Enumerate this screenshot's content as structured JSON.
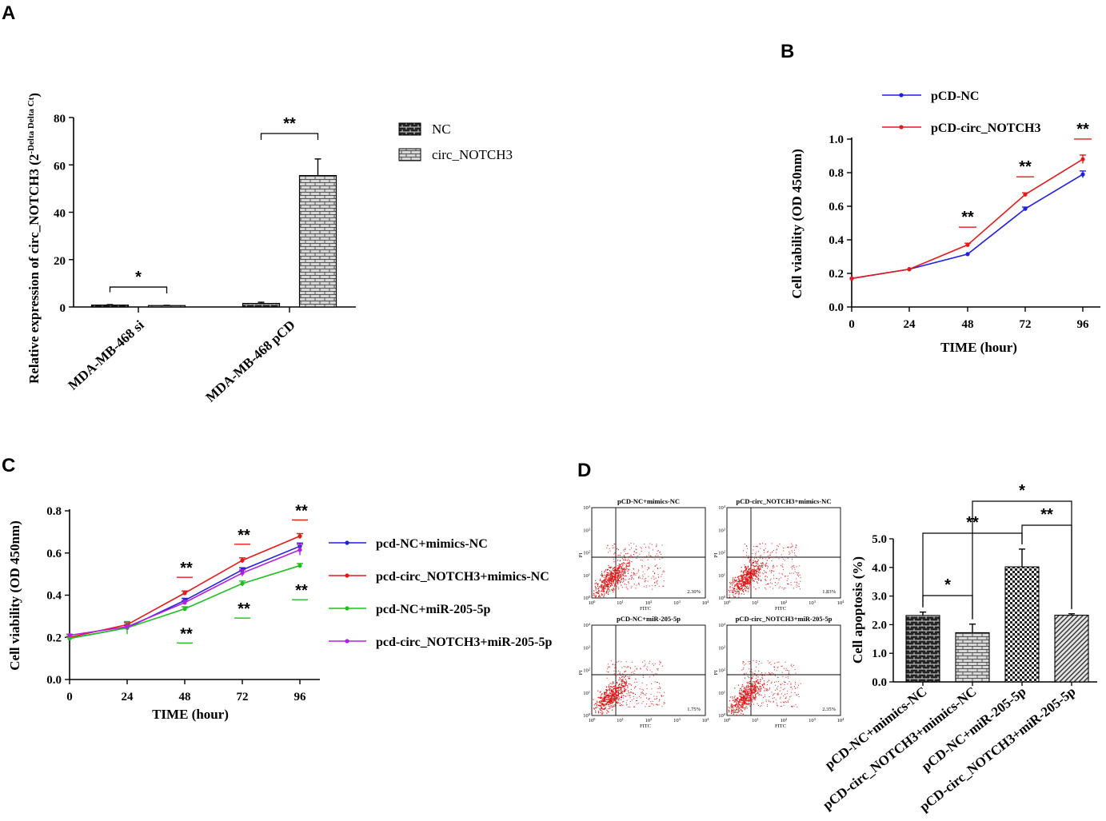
{
  "colors": {
    "blue": "#1f1fe0",
    "red": "#e41a1a",
    "green": "#1fbf1f",
    "magenta": "#b21fe0",
    "dot_red": "#e01818"
  },
  "chart_data": [
    {
      "id": "A",
      "panel_label": "A",
      "type": "bar",
      "ylabel": "Relative expression of circ_NOTCH3 (2",
      "ylabel_sup": "-Delta Delta Ct",
      "ylabel_close": ")",
      "ylim": [
        0,
        80
      ],
      "yticks": [
        0,
        20,
        40,
        60,
        80
      ],
      "categories": [
        "MDA-MB-468 si",
        "MDA-MB-468 pCD"
      ],
      "series": [
        {
          "name": "NC",
          "values": [
            0.8,
            1.5
          ],
          "errors": [
            0.2,
            0.5
          ]
        },
        {
          "name": "circ_NOTCH3",
          "values": [
            0.6,
            55.5
          ],
          "errors": [
            0.1,
            7.0
          ]
        }
      ],
      "significance": [
        {
          "category": "MDA-MB-468 si",
          "label": "*"
        },
        {
          "category": "MDA-MB-468 pCD",
          "label": "**"
        }
      ]
    },
    {
      "id": "B",
      "panel_label": "B",
      "type": "line",
      "xlabel": "TIME (hour)",
      "ylabel": "Cell viability (OD 450nm)",
      "x": [
        0,
        24,
        48,
        72,
        96
      ],
      "xticks": [
        0,
        24,
        48,
        72,
        96
      ],
      "ylim": [
        0,
        1.0
      ],
      "yticks": [
        "0.0",
        "0.2",
        "0.4",
        "0.6",
        "0.8",
        "1.0"
      ],
      "series": [
        {
          "name": "pCD-NC",
          "color": "#1f1fe0",
          "values": [
            0.17,
            0.225,
            0.315,
            0.585,
            0.79
          ],
          "errors": [
            0,
            0,
            0,
            0.01,
            0.02
          ]
        },
        {
          "name": "pCD-circ_NOTCH3",
          "color": "#e41a1a",
          "values": [
            0.17,
            0.225,
            0.37,
            0.67,
            0.88
          ],
          "errors": [
            0,
            0,
            0.01,
            0.01,
            0.025
          ]
        }
      ],
      "significance": [
        {
          "x": 48,
          "label": "**"
        },
        {
          "x": 72,
          "label": "**"
        },
        {
          "x": 96,
          "label": "**"
        }
      ]
    },
    {
      "id": "C",
      "panel_label": "C",
      "type": "line",
      "xlabel": "TIME (hour)",
      "ylabel": "Cell viability (OD 450nm)",
      "x": [
        0,
        24,
        48,
        72,
        96
      ],
      "xticks": [
        0,
        24,
        48,
        72,
        96
      ],
      "ylim": [
        0,
        0.8
      ],
      "yticks": [
        "0.0",
        "0.2",
        "0.4",
        "0.6",
        "0.8"
      ],
      "series": [
        {
          "name": "pcd-NC+mimics-NC",
          "color": "#1f1fe0",
          "values": [
            0.195,
            0.245,
            0.375,
            0.52,
            0.632
          ],
          "errors": [
            0.005,
            0.01,
            0.01,
            0.01,
            0.015
          ]
        },
        {
          "name": "pcd-circ_NOTCH3+mimics-NC",
          "color": "#e41a1a",
          "values": [
            0.2,
            0.26,
            0.41,
            0.565,
            0.68
          ],
          "errors": [
            0.005,
            0.01,
            0.01,
            0.012,
            0.012
          ]
        },
        {
          "name": "pcd-NC+miR-205-5p",
          "color": "#1fbf1f",
          "values": [
            0.195,
            0.245,
            0.335,
            0.455,
            0.54
          ],
          "errors": [
            0.005,
            0.03,
            0.01,
            0.012,
            0.01
          ]
        },
        {
          "name": "pcd-circ_NOTCH3+miR-205-5p",
          "color": "#b21fe0",
          "values": [
            0.21,
            0.25,
            0.365,
            0.505,
            0.615
          ],
          "errors": [
            0.005,
            0.01,
            0.01,
            0.015,
            0.025
          ]
        }
      ],
      "significance": [
        {
          "x": 48,
          "label": "**",
          "color": "#e41a1a",
          "position": "above"
        },
        {
          "x": 72,
          "label": "**",
          "color": "#e41a1a",
          "position": "above"
        },
        {
          "x": 96,
          "label": "**",
          "color": "#e41a1a",
          "position": "above"
        },
        {
          "x": 48,
          "label": "**",
          "color": "#1fbf1f",
          "position": "below"
        },
        {
          "x": 72,
          "label": "**",
          "color": "#1fbf1f",
          "position": "below"
        },
        {
          "x": 96,
          "label": "**",
          "color": "#1fbf1f",
          "position": "below"
        }
      ]
    },
    {
      "id": "D",
      "panel_label": "D",
      "type": "bar",
      "ylabel": "Cell apoptosis (%)",
      "ylim": [
        0,
        5.0
      ],
      "yticks": [
        "0.0",
        "1.0",
        "2.0",
        "3.0",
        "4.0",
        "5.0"
      ],
      "categories": [
        "pCD-NC+mimics-NC",
        "pCD-circ_NOTCH3+mimics-NC",
        "pCD-NC+miR-205-5p",
        "pCD-circ_NOTCH3+miR-205-5p"
      ],
      "values": [
        2.32,
        1.72,
        4.02,
        2.33
      ],
      "errors": [
        0.12,
        0.3,
        0.62,
        0.05
      ],
      "significance": [
        {
          "from": 0,
          "to": 1,
          "label": "*"
        },
        {
          "from": 0,
          "to": 2,
          "label": "**"
        },
        {
          "from": 2,
          "to": 3,
          "label": "**"
        },
        {
          "from": 1,
          "to": 3,
          "label": "*"
        }
      ]
    }
  ],
  "flow_cytometry": {
    "axis_x": "FITC",
    "axis_y": "PI",
    "decades": [
      "10",
      "10",
      "10",
      "10",
      "10"
    ],
    "exponents": [
      "0",
      "1",
      "2",
      "3",
      "4"
    ],
    "plots": [
      {
        "title": "pCD-NC+mimics-NC",
        "percent": "2.30%"
      },
      {
        "title": "pCD-circ_NOTCH3+mimics-NC",
        "percent": "1.83%"
      },
      {
        "title": "pCD-NC+miR-205-5p",
        "percent": "1.75%"
      },
      {
        "title": "pCD-circ_NOTCH3+miR-205-5p",
        "percent": "2.35%"
      }
    ]
  }
}
